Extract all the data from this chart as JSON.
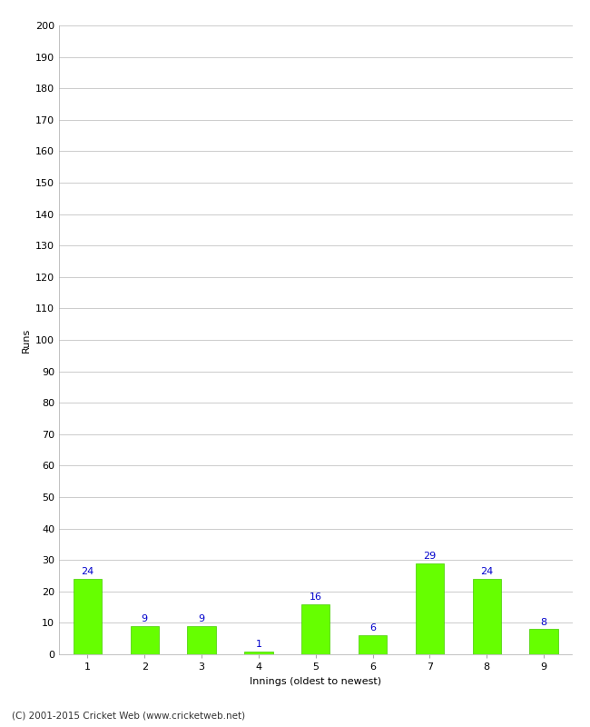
{
  "categories": [
    "1",
    "2",
    "3",
    "4",
    "5",
    "6",
    "7",
    "8",
    "9"
  ],
  "values": [
    24,
    9,
    9,
    1,
    16,
    6,
    29,
    24,
    8
  ],
  "bar_color": "#66ff00",
  "bar_edge_color": "#44cc00",
  "label_color": "#0000cc",
  "xlabel": "Innings (oldest to newest)",
  "ylabel": "Runs",
  "ylim": [
    0,
    200
  ],
  "yticks": [
    0,
    10,
    20,
    30,
    40,
    50,
    60,
    70,
    80,
    90,
    100,
    110,
    120,
    130,
    140,
    150,
    160,
    170,
    180,
    190,
    200
  ],
  "grid_color": "#cccccc",
  "background_color": "#ffffff",
  "footer": "(C) 2001-2015 Cricket Web (www.cricketweb.net)",
  "label_fontsize": 8,
  "axis_label_fontsize": 8,
  "tick_fontsize": 8,
  "footer_fontsize": 7.5
}
